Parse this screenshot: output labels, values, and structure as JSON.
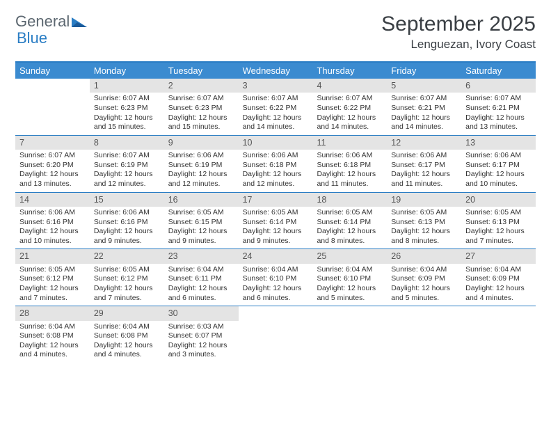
{
  "logo": {
    "text1": "General",
    "text2": "Blue"
  },
  "header": {
    "month": "September 2025",
    "location": "Lenguezan, Ivory Coast"
  },
  "colors": {
    "header_bg": "#3b8bd0",
    "header_border": "#2a7dc4",
    "daynum_bg": "#e4e4e4",
    "text": "#333333"
  },
  "day_headers": [
    "Sunday",
    "Monday",
    "Tuesday",
    "Wednesday",
    "Thursday",
    "Friday",
    "Saturday"
  ],
  "weeks": [
    [
      {
        "n": "",
        "sr": "",
        "ss": "",
        "dl": ""
      },
      {
        "n": "1",
        "sr": "Sunrise: 6:07 AM",
        "ss": "Sunset: 6:23 PM",
        "dl": "Daylight: 12 hours and 15 minutes."
      },
      {
        "n": "2",
        "sr": "Sunrise: 6:07 AM",
        "ss": "Sunset: 6:23 PM",
        "dl": "Daylight: 12 hours and 15 minutes."
      },
      {
        "n": "3",
        "sr": "Sunrise: 6:07 AM",
        "ss": "Sunset: 6:22 PM",
        "dl": "Daylight: 12 hours and 14 minutes."
      },
      {
        "n": "4",
        "sr": "Sunrise: 6:07 AM",
        "ss": "Sunset: 6:22 PM",
        "dl": "Daylight: 12 hours and 14 minutes."
      },
      {
        "n": "5",
        "sr": "Sunrise: 6:07 AM",
        "ss": "Sunset: 6:21 PM",
        "dl": "Daylight: 12 hours and 14 minutes."
      },
      {
        "n": "6",
        "sr": "Sunrise: 6:07 AM",
        "ss": "Sunset: 6:21 PM",
        "dl": "Daylight: 12 hours and 13 minutes."
      }
    ],
    [
      {
        "n": "7",
        "sr": "Sunrise: 6:07 AM",
        "ss": "Sunset: 6:20 PM",
        "dl": "Daylight: 12 hours and 13 minutes."
      },
      {
        "n": "8",
        "sr": "Sunrise: 6:07 AM",
        "ss": "Sunset: 6:19 PM",
        "dl": "Daylight: 12 hours and 12 minutes."
      },
      {
        "n": "9",
        "sr": "Sunrise: 6:06 AM",
        "ss": "Sunset: 6:19 PM",
        "dl": "Daylight: 12 hours and 12 minutes."
      },
      {
        "n": "10",
        "sr": "Sunrise: 6:06 AM",
        "ss": "Sunset: 6:18 PM",
        "dl": "Daylight: 12 hours and 12 minutes."
      },
      {
        "n": "11",
        "sr": "Sunrise: 6:06 AM",
        "ss": "Sunset: 6:18 PM",
        "dl": "Daylight: 12 hours and 11 minutes."
      },
      {
        "n": "12",
        "sr": "Sunrise: 6:06 AM",
        "ss": "Sunset: 6:17 PM",
        "dl": "Daylight: 12 hours and 11 minutes."
      },
      {
        "n": "13",
        "sr": "Sunrise: 6:06 AM",
        "ss": "Sunset: 6:17 PM",
        "dl": "Daylight: 12 hours and 10 minutes."
      }
    ],
    [
      {
        "n": "14",
        "sr": "Sunrise: 6:06 AM",
        "ss": "Sunset: 6:16 PM",
        "dl": "Daylight: 12 hours and 10 minutes."
      },
      {
        "n": "15",
        "sr": "Sunrise: 6:06 AM",
        "ss": "Sunset: 6:16 PM",
        "dl": "Daylight: 12 hours and 9 minutes."
      },
      {
        "n": "16",
        "sr": "Sunrise: 6:05 AM",
        "ss": "Sunset: 6:15 PM",
        "dl": "Daylight: 12 hours and 9 minutes."
      },
      {
        "n": "17",
        "sr": "Sunrise: 6:05 AM",
        "ss": "Sunset: 6:14 PM",
        "dl": "Daylight: 12 hours and 9 minutes."
      },
      {
        "n": "18",
        "sr": "Sunrise: 6:05 AM",
        "ss": "Sunset: 6:14 PM",
        "dl": "Daylight: 12 hours and 8 minutes."
      },
      {
        "n": "19",
        "sr": "Sunrise: 6:05 AM",
        "ss": "Sunset: 6:13 PM",
        "dl": "Daylight: 12 hours and 8 minutes."
      },
      {
        "n": "20",
        "sr": "Sunrise: 6:05 AM",
        "ss": "Sunset: 6:13 PM",
        "dl": "Daylight: 12 hours and 7 minutes."
      }
    ],
    [
      {
        "n": "21",
        "sr": "Sunrise: 6:05 AM",
        "ss": "Sunset: 6:12 PM",
        "dl": "Daylight: 12 hours and 7 minutes."
      },
      {
        "n": "22",
        "sr": "Sunrise: 6:05 AM",
        "ss": "Sunset: 6:12 PM",
        "dl": "Daylight: 12 hours and 7 minutes."
      },
      {
        "n": "23",
        "sr": "Sunrise: 6:04 AM",
        "ss": "Sunset: 6:11 PM",
        "dl": "Daylight: 12 hours and 6 minutes."
      },
      {
        "n": "24",
        "sr": "Sunrise: 6:04 AM",
        "ss": "Sunset: 6:10 PM",
        "dl": "Daylight: 12 hours and 6 minutes."
      },
      {
        "n": "25",
        "sr": "Sunrise: 6:04 AM",
        "ss": "Sunset: 6:10 PM",
        "dl": "Daylight: 12 hours and 5 minutes."
      },
      {
        "n": "26",
        "sr": "Sunrise: 6:04 AM",
        "ss": "Sunset: 6:09 PM",
        "dl": "Daylight: 12 hours and 5 minutes."
      },
      {
        "n": "27",
        "sr": "Sunrise: 6:04 AM",
        "ss": "Sunset: 6:09 PM",
        "dl": "Daylight: 12 hours and 4 minutes."
      }
    ],
    [
      {
        "n": "28",
        "sr": "Sunrise: 6:04 AM",
        "ss": "Sunset: 6:08 PM",
        "dl": "Daylight: 12 hours and 4 minutes."
      },
      {
        "n": "29",
        "sr": "Sunrise: 6:04 AM",
        "ss": "Sunset: 6:08 PM",
        "dl": "Daylight: 12 hours and 4 minutes."
      },
      {
        "n": "30",
        "sr": "Sunrise: 6:03 AM",
        "ss": "Sunset: 6:07 PM",
        "dl": "Daylight: 12 hours and 3 minutes."
      },
      {
        "n": "",
        "sr": "",
        "ss": "",
        "dl": ""
      },
      {
        "n": "",
        "sr": "",
        "ss": "",
        "dl": ""
      },
      {
        "n": "",
        "sr": "",
        "ss": "",
        "dl": ""
      },
      {
        "n": "",
        "sr": "",
        "ss": "",
        "dl": ""
      }
    ]
  ]
}
